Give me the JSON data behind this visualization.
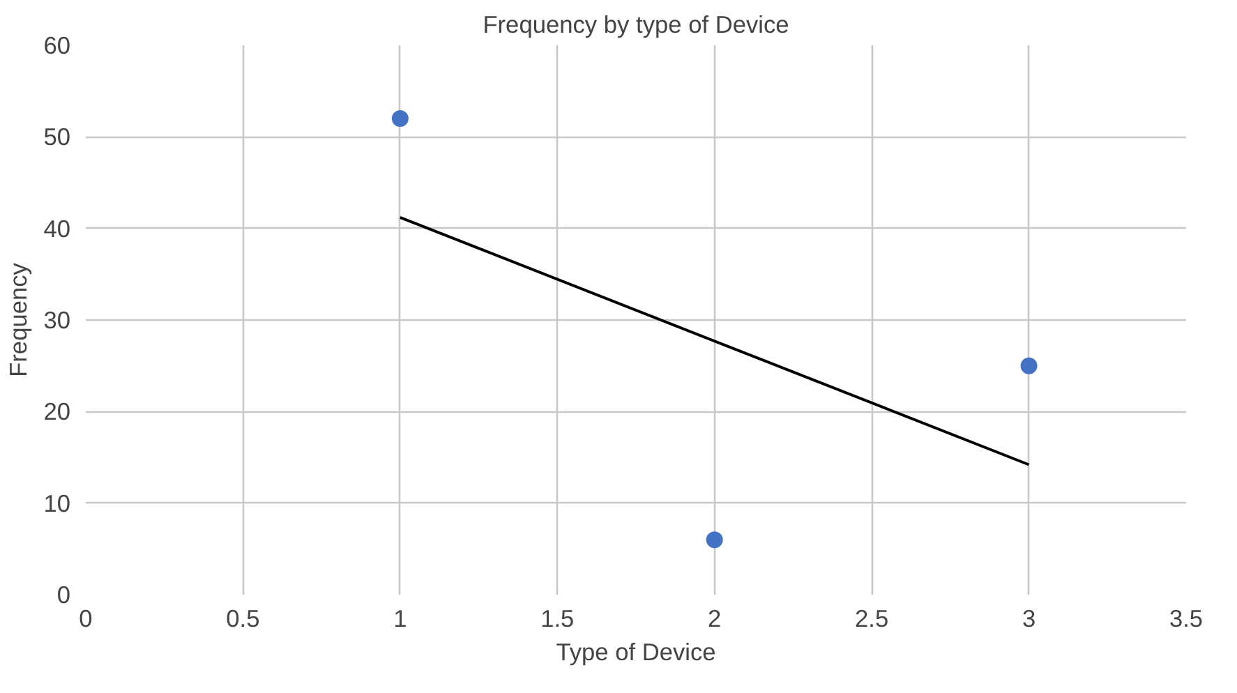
{
  "chart_data": {
    "type": "scatter",
    "title": "Frequency by type of Device",
    "xlabel": "Type of Device",
    "ylabel": "Frequency",
    "x": [
      1,
      2,
      3
    ],
    "series": [
      {
        "color": "#4472c4",
        "marker": "circle",
        "values": [
          52,
          6,
          25
        ]
      },
      {
        "type": "line",
        "color": "#000000",
        "x": [
          1,
          3
        ],
        "values": [
          41.2,
          14.2
        ]
      }
    ],
    "xlim": [
      0,
      3.5
    ],
    "xticks": [
      0,
      0.5,
      1,
      1.5,
      2,
      2.5,
      3,
      3.5
    ],
    "ylim": [
      0,
      60
    ],
    "yticks": [
      0,
      10,
      20,
      30,
      40,
      50,
      60
    ],
    "grid": true
  }
}
